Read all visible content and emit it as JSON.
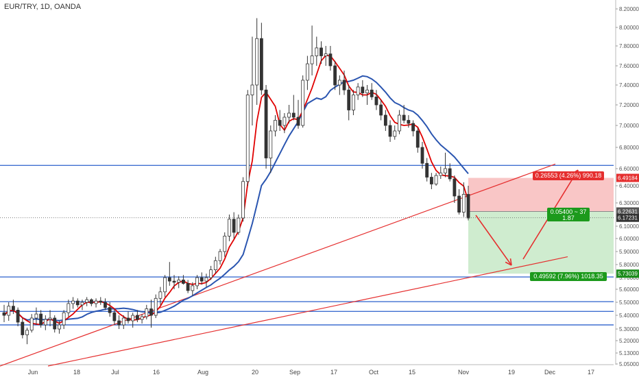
{
  "header": {
    "title": "EUR/TRY, 1D, OANDA"
  },
  "chart_data": {
    "type": "candlestick",
    "title": "EUR/TRY, 1D, OANDA",
    "y_axis_side": "right",
    "ylim": [
      5.05,
      8.25
    ],
    "y_ticks": [
      "8.20000",
      "8.00000",
      "7.80000",
      "7.60000",
      "7.40000",
      "7.20000",
      "7.00000",
      "6.80000",
      "6.60000",
      "6.40000",
      "6.30000",
      "6.10000",
      "6.00000",
      "5.90000",
      "5.80000",
      "5.70000",
      "5.60000",
      "5.50000",
      "5.40000",
      "5.30000",
      "5.20000",
      "5.13000",
      "5.05000"
    ],
    "x_ticks": [
      "Jun",
      "18",
      "Jul",
      "16",
      "Aug",
      "20",
      "Sep",
      "17",
      "Oct",
      "15",
      "Nov",
      "19",
      "Dec",
      "17"
    ],
    "price_labels": [
      {
        "value": "6.49184",
        "color": "#e52e2e"
      },
      {
        "value": "6.22631",
        "color": "#555555"
      },
      {
        "value": "6.17231",
        "color": "#333333"
      },
      {
        "value": "5.73039",
        "color": "#1c8c1c"
      }
    ],
    "position_labels": {
      "target": "0.26553 (4.26%) 990.18",
      "entry_line1": "0.05400 ~ 37",
      "entry_line2": "1.87",
      "stop": "0.49592 (7.96%) 1018.35"
    },
    "horizontal_levels": [
      6.63,
      5.705,
      5.505,
      5.43,
      5.33
    ],
    "last_price": 6.17231,
    "position_entry": 6.22631,
    "position_target": 6.49184,
    "position_stop": 5.73039,
    "ma_fast_color": "#e00000",
    "ma_slow_color": "#2a55b0",
    "level_color": "#3f6fd0",
    "trend_color": "#e52e2e",
    "candles": [
      [
        5.42,
        5.48,
        5.35,
        5.4
      ],
      [
        5.4,
        5.5,
        5.36,
        5.47
      ],
      [
        5.47,
        5.52,
        5.41,
        5.44
      ],
      [
        5.44,
        5.46,
        5.32,
        5.35
      ],
      [
        5.35,
        5.38,
        5.22,
        5.25
      ],
      [
        5.25,
        5.31,
        5.18,
        5.29
      ],
      [
        5.29,
        5.41,
        5.27,
        5.38
      ],
      [
        5.38,
        5.46,
        5.33,
        5.41
      ],
      [
        5.41,
        5.44,
        5.31,
        5.33
      ],
      [
        5.33,
        5.4,
        5.29,
        5.37
      ],
      [
        5.37,
        5.44,
        5.32,
        5.38
      ],
      [
        5.38,
        5.4,
        5.27,
        5.3
      ],
      [
        5.3,
        5.36,
        5.26,
        5.33
      ],
      [
        5.33,
        5.44,
        5.3,
        5.42
      ],
      [
        5.42,
        5.52,
        5.39,
        5.49
      ],
      [
        5.49,
        5.54,
        5.45,
        5.51
      ],
      [
        5.51,
        5.53,
        5.46,
        5.48
      ],
      [
        5.48,
        5.52,
        5.44,
        5.5
      ],
      [
        5.5,
        5.54,
        5.47,
        5.52
      ],
      [
        5.52,
        5.53,
        5.47,
        5.49
      ],
      [
        5.49,
        5.53,
        5.46,
        5.51
      ],
      [
        5.51,
        5.54,
        5.48,
        5.5
      ],
      [
        5.5,
        5.53,
        5.44,
        5.46
      ],
      [
        5.46,
        5.5,
        5.39,
        5.42
      ],
      [
        5.42,
        5.45,
        5.33,
        5.36
      ],
      [
        5.36,
        5.4,
        5.3,
        5.33
      ],
      [
        5.33,
        5.4,
        5.3,
        5.38
      ],
      [
        5.38,
        5.43,
        5.34,
        5.36
      ],
      [
        5.36,
        5.42,
        5.31,
        5.4
      ],
      [
        5.4,
        5.44,
        5.35,
        5.37
      ],
      [
        5.37,
        5.41,
        5.34,
        5.39
      ],
      [
        5.39,
        5.48,
        5.37,
        5.45
      ],
      [
        5.45,
        5.52,
        5.31,
        5.4
      ],
      [
        5.4,
        5.56,
        5.38,
        5.53
      ],
      [
        5.53,
        5.62,
        5.48,
        5.58
      ],
      [
        5.58,
        5.72,
        5.54,
        5.7
      ],
      [
        5.7,
        5.82,
        5.63,
        5.67
      ],
      [
        5.67,
        5.72,
        5.6,
        5.66
      ],
      [
        5.66,
        5.71,
        5.61,
        5.68
      ],
      [
        5.68,
        5.72,
        5.64,
        5.65
      ],
      [
        5.65,
        5.68,
        5.57,
        5.59
      ],
      [
        5.59,
        5.66,
        5.55,
        5.63
      ],
      [
        5.63,
        5.72,
        5.6,
        5.7
      ],
      [
        5.7,
        5.74,
        5.64,
        5.67
      ],
      [
        5.67,
        5.73,
        5.62,
        5.7
      ],
      [
        5.7,
        5.79,
        5.68,
        5.76
      ],
      [
        5.76,
        5.86,
        5.73,
        5.83
      ],
      [
        5.83,
        5.92,
        5.8,
        5.9
      ],
      [
        5.9,
        6.05,
        5.86,
        6.02
      ],
      [
        6.02,
        6.2,
        5.98,
        6.16
      ],
      [
        6.16,
        6.22,
        6.0,
        6.05
      ],
      [
        6.05,
        6.2,
        6.03,
        6.17
      ],
      [
        6.17,
        6.5,
        6.14,
        6.45
      ],
      [
        6.45,
        7.35,
        6.4,
        7.3
      ],
      [
        7.3,
        7.9,
        7.0,
        7.4
      ],
      [
        7.4,
        8.1,
        7.2,
        7.88
      ],
      [
        7.88,
        8.05,
        7.3,
        7.35
      ],
      [
        7.35,
        7.4,
        6.6,
        6.7
      ],
      [
        6.7,
        7.0,
        6.55,
        6.95
      ],
      [
        6.95,
        7.1,
        6.9,
        7.05
      ],
      [
        7.05,
        7.15,
        6.95,
        7.0
      ],
      [
        7.0,
        7.12,
        6.93,
        7.08
      ],
      [
        7.08,
        7.2,
        7.02,
        7.12
      ],
      [
        7.12,
        7.3,
        7.05,
        7.08
      ],
      [
        7.08,
        7.25,
        6.97,
        7.0
      ],
      [
        7.0,
        7.5,
        6.98,
        7.45
      ],
      [
        7.45,
        7.7,
        7.35,
        7.62
      ],
      [
        7.62,
        8.02,
        7.5,
        7.7
      ],
      [
        7.7,
        7.9,
        7.6,
        7.78
      ],
      [
        7.78,
        7.85,
        7.62,
        7.7
      ],
      [
        7.7,
        7.8,
        7.6,
        7.72
      ],
      [
        7.72,
        7.8,
        7.55,
        7.6
      ],
      [
        7.6,
        7.65,
        7.35,
        7.4
      ],
      [
        7.4,
        7.5,
        7.3,
        7.45
      ],
      [
        7.45,
        7.55,
        7.3,
        7.35
      ],
      [
        7.35,
        7.4,
        7.05,
        7.15
      ],
      [
        7.15,
        7.35,
        7.1,
        7.3
      ],
      [
        7.3,
        7.42,
        7.25,
        7.38
      ],
      [
        7.38,
        7.45,
        7.28,
        7.32
      ],
      [
        7.32,
        7.4,
        7.2,
        7.35
      ],
      [
        7.35,
        7.42,
        7.25,
        7.28
      ],
      [
        7.28,
        7.35,
        7.15,
        7.2
      ],
      [
        7.2,
        7.25,
        7.05,
        7.1
      ],
      [
        7.1,
        7.15,
        6.95,
        7.0
      ],
      [
        7.0,
        7.05,
        6.85,
        6.9
      ],
      [
        6.9,
        7.0,
        6.87,
        6.95
      ],
      [
        6.95,
        7.15,
        6.92,
        7.1
      ],
      [
        7.1,
        7.2,
        7.02,
        7.05
      ],
      [
        7.05,
        7.1,
        6.98,
        7.02
      ],
      [
        7.02,
        7.05,
        6.9,
        6.95
      ],
      [
        6.95,
        6.98,
        6.75,
        6.8
      ],
      [
        6.8,
        6.85,
        6.6,
        6.65
      ],
      [
        6.65,
        6.7,
        6.45,
        6.5
      ],
      [
        6.5,
        6.55,
        6.38,
        6.42
      ],
      [
        6.42,
        6.55,
        6.4,
        6.52
      ],
      [
        6.52,
        6.62,
        6.48,
        6.55
      ],
      [
        6.55,
        6.75,
        6.5,
        6.6
      ],
      [
        6.6,
        6.65,
        6.45,
        6.48
      ],
      [
        6.48,
        6.52,
        6.3,
        6.34
      ],
      [
        6.34,
        6.38,
        6.2,
        6.22
      ],
      [
        6.22,
        6.44,
        6.18,
        6.35
      ],
      [
        6.35,
        6.4,
        6.15,
        6.17
      ]
    ]
  }
}
